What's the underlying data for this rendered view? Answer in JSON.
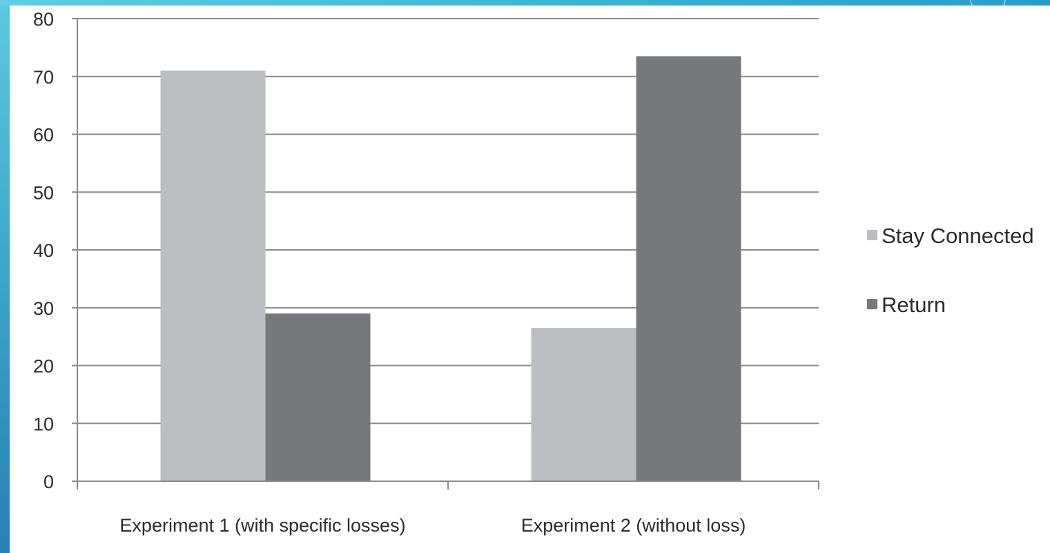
{
  "chart_data": {
    "type": "bar",
    "title": "",
    "xlabel": "",
    "ylabel": "",
    "ylim": [
      0,
      80
    ],
    "yticks": [
      0,
      10,
      20,
      30,
      40,
      50,
      60,
      70,
      80
    ],
    "grid": true,
    "legend_position": "right",
    "categories": [
      "Experiment 1 (with specific losses)",
      "Experiment 2 (without loss)"
    ],
    "series": [
      {
        "name": "Stay Connected",
        "color": "#bcbdc0",
        "values": [
          71,
          26.5
        ]
      },
      {
        "name": "Return",
        "color": "#77787c",
        "values": [
          29,
          73.5
        ]
      }
    ]
  },
  "theme": {
    "grid_color": "#8a8a8a",
    "axis_color": "#8a8a8a"
  }
}
